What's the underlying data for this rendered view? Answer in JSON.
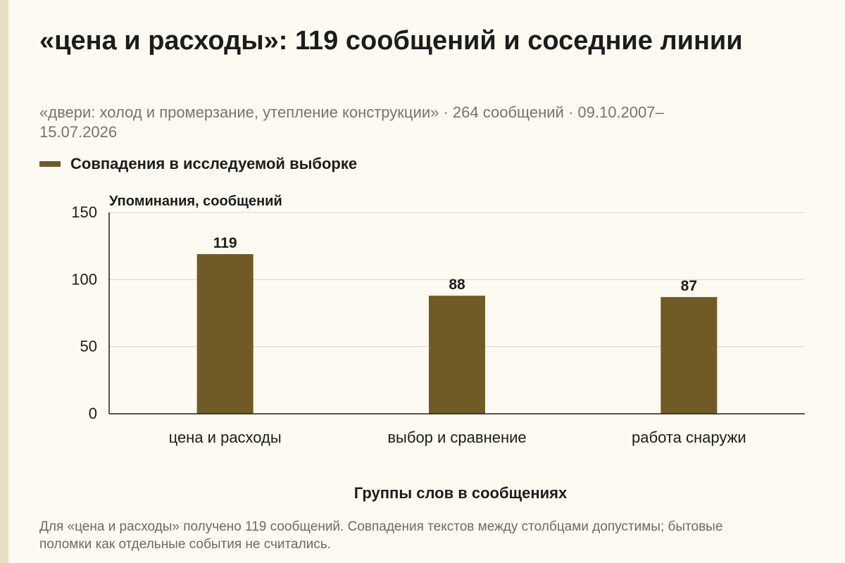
{
  "title": "«цена и расходы»: 119 сообщений и соседние линии",
  "subtitle": "«двери: холод и промерзание, утепление конструкции» · 264 сообщений · 09.10.2007–15.07.2026",
  "legend_label": "Совпадения в исследуемой выборке",
  "note": "Для «цена и расходы» получено 119 сообщений. Совпадения текстов между столбцами допустимы; бытовые поломки как отдельные события не считались.",
  "colors": {
    "bar": "#705a26",
    "grid": "#d9d6cc",
    "axis": "#1c1c1c",
    "background": "#fdfbf1"
  },
  "chart_data": {
    "type": "bar",
    "categories": [
      "цена и расходы",
      "выбор и сравнение",
      "работа снаружи"
    ],
    "values": [
      119,
      88,
      87
    ],
    "ylim": [
      0,
      150
    ],
    "yticks": [
      0,
      50,
      100,
      150
    ],
    "xlabel": "Группы слов в сообщениях",
    "ylabel": "Упоминания, сообщений",
    "legend": "top-left",
    "grid": true
  }
}
